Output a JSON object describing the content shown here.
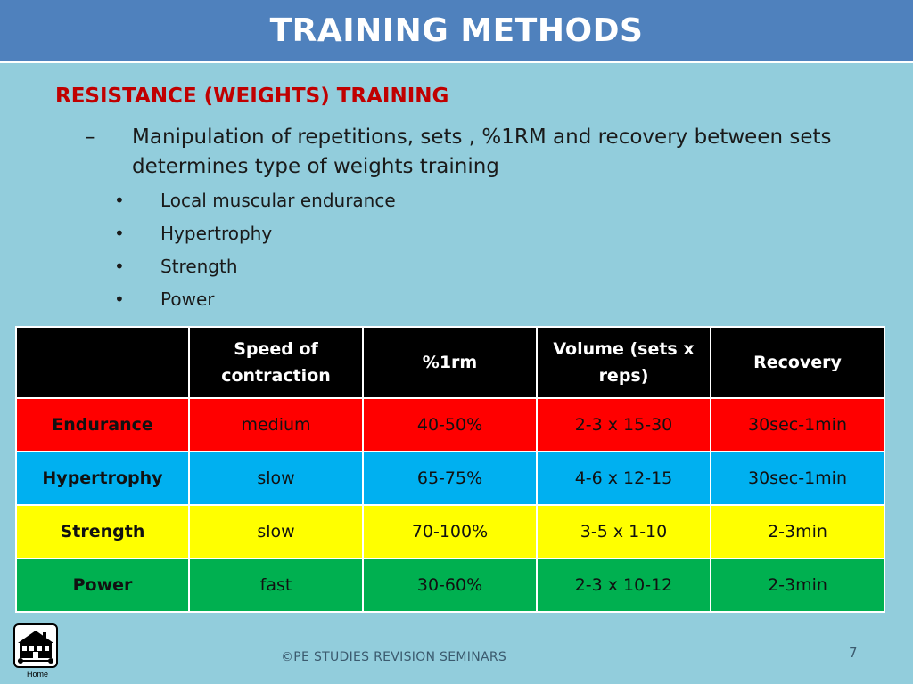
{
  "slide": {
    "title": "TRAINING METHODS",
    "heading": "RESISTANCE (WEIGHTS) TRAINING",
    "dash_marker": "–",
    "sub_point": "Manipulation of repetitions, sets , %1RM and recovery between sets determines type of weights training",
    "bullet_marker": "•",
    "bullets": [
      "Local muscular endurance",
      "Hypertrophy",
      "Strength",
      "Power"
    ]
  },
  "table": {
    "headers": [
      "",
      "Speed of contraction",
      "%1rm",
      "Volume (sets x reps)",
      "Recovery"
    ],
    "rows": [
      {
        "label": "Endurance",
        "speed": "medium",
        "rm": "40-50%",
        "volume": "2-3 x 15-30",
        "recovery": "30sec-1min",
        "color": "#ff0000"
      },
      {
        "label": "Hypertrophy",
        "speed": "slow",
        "rm": "65-75%",
        "volume": "4-6 x 12-15",
        "recovery": "30sec-1min",
        "color": "#00b0f0"
      },
      {
        "label": "Strength",
        "speed": "slow",
        "rm": "70-100%",
        "volume": "3-5 x 1-10",
        "recovery": "2-3min",
        "color": "#ffff00"
      },
      {
        "label": "Power",
        "speed": "fast",
        "rm": "30-60%",
        "volume": "2-3 x 10-12",
        "recovery": "2-3min",
        "color": "#00b050"
      }
    ]
  },
  "home": {
    "label": "Home",
    "icon": "house-icon"
  },
  "footer": {
    "copyright": "©PE STUDIES REVISION SEMINARS",
    "page_number": "7"
  },
  "colors": {
    "title_bar": "#4f81bd",
    "background": "#92cddc",
    "heading": "#c00000"
  }
}
